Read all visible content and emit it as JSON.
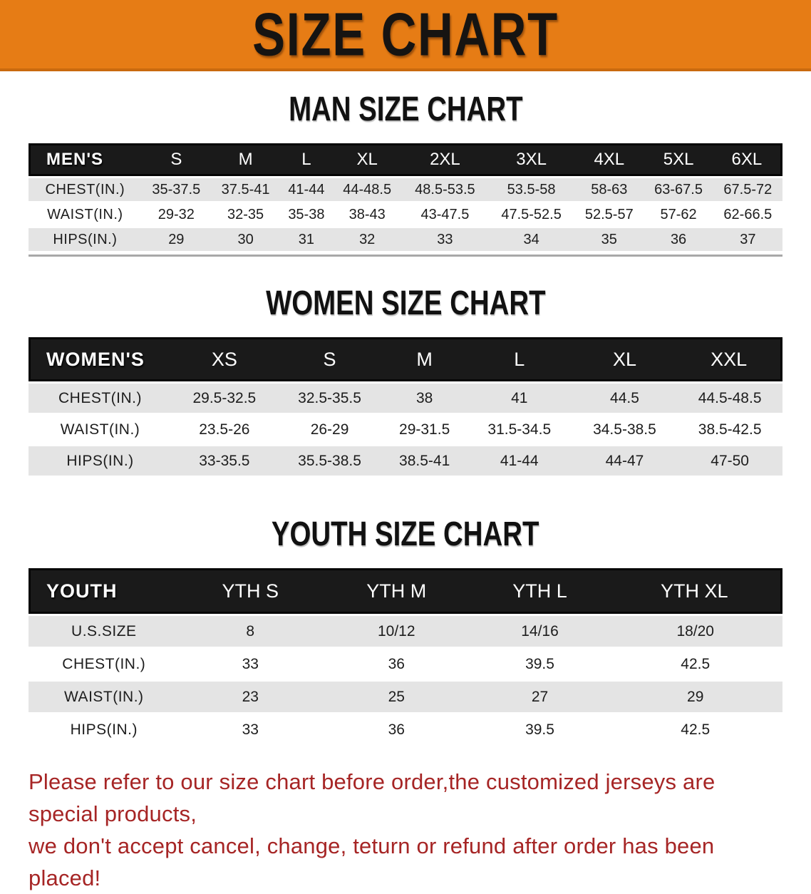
{
  "banner": {
    "title": "SIZE CHART"
  },
  "colors": {
    "banner_bg": "#E67C15",
    "table_header_bg": "#1A1A1A",
    "row_stripe": "#E4E4E4",
    "footnote_red": "#A62525"
  },
  "sections": [
    {
      "heading": "MAN SIZE CHART",
      "table": {
        "header": [
          "MEN'S",
          "S",
          "M",
          "L",
          "XL",
          "2XL",
          "3XL",
          "4XL",
          "5XL",
          "6XL"
        ],
        "rows": [
          [
            "CHEST(IN.)",
            "35-37.5",
            "37.5-41",
            "41-44",
            "44-48.5",
            "48.5-53.5",
            "53.5-58",
            "58-63",
            "63-67.5",
            "67.5-72"
          ],
          [
            "WAIST(IN.)",
            "29-32",
            "32-35",
            "35-38",
            "38-43",
            "43-47.5",
            "47.5-52.5",
            "52.5-57",
            "57-62",
            "62-66.5"
          ],
          [
            "HIPS(IN.)",
            "29",
            "30",
            "31",
            "32",
            "33",
            "34",
            "35",
            "36",
            "37"
          ]
        ]
      }
    },
    {
      "heading": "WOMEN SIZE CHART",
      "table": {
        "header": [
          "WOMEN'S",
          "XS",
          "S",
          "M",
          "L",
          "XL",
          "XXL"
        ],
        "rows": [
          [
            "CHEST(IN.)",
            "29.5-32.5",
            "32.5-35.5",
            "38",
            "41",
            "44.5",
            "44.5-48.5"
          ],
          [
            "WAIST(IN.)",
            "23.5-26",
            "26-29",
            "29-31.5",
            "31.5-34.5",
            "34.5-38.5",
            "38.5-42.5"
          ],
          [
            "HIPS(IN.)",
            "33-35.5",
            "35.5-38.5",
            "38.5-41",
            "41-44",
            "44-47",
            "47-50"
          ]
        ]
      }
    },
    {
      "heading": "YOUTH SIZE CHART",
      "table": {
        "header": [
          "YOUTH",
          "YTH S",
          "YTH M",
          "YTH L",
          "YTH XL"
        ],
        "rows": [
          [
            "U.S.SIZE",
            "8",
            "10/12",
            "14/16",
            "18/20"
          ],
          [
            "CHEST(IN.)",
            "33",
            "36",
            "39.5",
            "42.5"
          ],
          [
            "WAIST(IN.)",
            "23",
            "25",
            "27",
            "29"
          ],
          [
            "HIPS(IN.)",
            "33",
            "36",
            "39.5",
            "42.5"
          ]
        ]
      }
    }
  ],
  "footnote": {
    "line1": "Please refer to our size chart before order,the customized jerseys are special products,",
    "line2": "we don't accept cancel, change, teturn or refund after order has been placed!"
  }
}
